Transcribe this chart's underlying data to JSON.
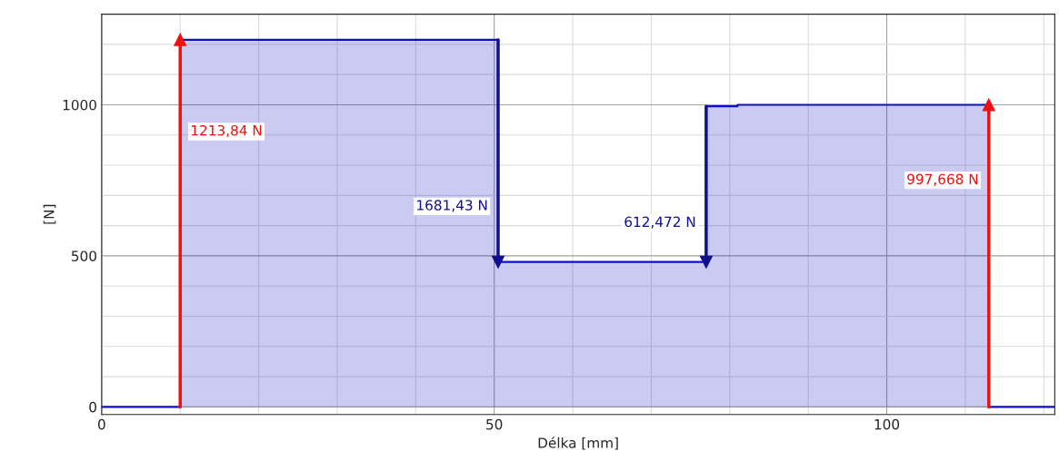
{
  "chart_data": {
    "type": "step",
    "xlabel": "Délka [mm]",
    "ylabel": "[N]",
    "x": [
      0,
      10,
      50.5,
      77,
      81,
      113,
      121.4
    ],
    "series": [
      {
        "color": "#1010c0",
        "values": [
          0,
          1215,
          480,
          995,
          1000,
          0,
          0
        ]
      },
      {
        "type": "line",
        "marker": "triangle",
        "name": "1213,84 N",
        "color": "#ee1111",
        "x": [
          10,
          10
        ],
        "values": [
          0,
          1215
        ]
      },
      {
        "type": "line",
        "marker": "triangle",
        "name": "1681,43 N",
        "color": "#101090",
        "x": [
          50.5,
          50.5
        ],
        "values": [
          1215,
          480
        ]
      },
      {
        "type": "line",
        "marker": "triangle",
        "name": "612,472 N",
        "color": "#101090",
        "x": [
          77,
          77
        ],
        "values": [
          995,
          480
        ]
      },
      {
        "type": "line",
        "marker": "triangle",
        "name": "997,668 N",
        "color": "#ee1111",
        "x": [
          113,
          113
        ],
        "values": [
          0,
          1000
        ]
      }
    ],
    "xlim": [
      0,
      121.4
    ],
    "ylim": [
      -25,
      1300
    ],
    "xticks": [
      0,
      {
        "value": 10,
        "label": null
      },
      {
        "value": 20,
        "label": null
      },
      {
        "value": 30,
        "label": null
      },
      {
        "value": 40,
        "label": null
      },
      50,
      {
        "value": 60,
        "label": null
      },
      {
        "value": 70,
        "label": null
      },
      {
        "value": 80,
        "label": null
      },
      {
        "value": 90,
        "label": null
      },
      100,
      {
        "value": 110,
        "label": null
      },
      {
        "value": 120,
        "label": null
      }
    ],
    "yticks": [
      0,
      {
        "value": 100,
        "label": null
      },
      {
        "value": 200,
        "label": null
      },
      {
        "value": 300,
        "label": null
      },
      {
        "value": 400,
        "label": null
      },
      500,
      {
        "value": 600,
        "label": null
      },
      {
        "value": 700,
        "label": null
      },
      {
        "value": 800,
        "label": null
      },
      {
        "value": 900,
        "label": null
      },
      1000,
      {
        "value": 1100,
        "label": null
      },
      {
        "value": 1200,
        "label": null
      }
    ],
    "grid": true
  }
}
